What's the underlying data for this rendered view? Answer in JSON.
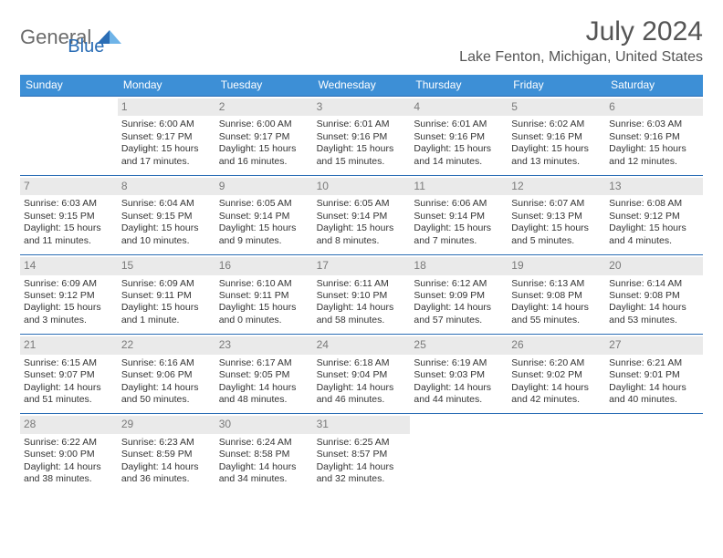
{
  "logo": {
    "text_a": "General",
    "text_b": "Blue",
    "color_gray": "#6b6b6b",
    "color_blue": "#2a6db5"
  },
  "title": {
    "month": "July 2024",
    "location": "Lake Fenton, Michigan, United States"
  },
  "colors": {
    "header_bg": "#3d8fd6",
    "header_text": "#ffffff",
    "rule": "#2a6db5",
    "date_bg": "#eaeaea",
    "date_text": "#7a7a7a"
  },
  "day_headers": [
    "Sunday",
    "Monday",
    "Tuesday",
    "Wednesday",
    "Thursday",
    "Friday",
    "Saturday"
  ],
  "weeks": [
    [
      {
        "date": "",
        "lines": []
      },
      {
        "date": "1",
        "lines": [
          "Sunrise: 6:00 AM",
          "Sunset: 9:17 PM",
          "Daylight: 15 hours",
          "and 17 minutes."
        ]
      },
      {
        "date": "2",
        "lines": [
          "Sunrise: 6:00 AM",
          "Sunset: 9:17 PM",
          "Daylight: 15 hours",
          "and 16 minutes."
        ]
      },
      {
        "date": "3",
        "lines": [
          "Sunrise: 6:01 AM",
          "Sunset: 9:16 PM",
          "Daylight: 15 hours",
          "and 15 minutes."
        ]
      },
      {
        "date": "4",
        "lines": [
          "Sunrise: 6:01 AM",
          "Sunset: 9:16 PM",
          "Daylight: 15 hours",
          "and 14 minutes."
        ]
      },
      {
        "date": "5",
        "lines": [
          "Sunrise: 6:02 AM",
          "Sunset: 9:16 PM",
          "Daylight: 15 hours",
          "and 13 minutes."
        ]
      },
      {
        "date": "6",
        "lines": [
          "Sunrise: 6:03 AM",
          "Sunset: 9:16 PM",
          "Daylight: 15 hours",
          "and 12 minutes."
        ]
      }
    ],
    [
      {
        "date": "7",
        "lines": [
          "Sunrise: 6:03 AM",
          "Sunset: 9:15 PM",
          "Daylight: 15 hours",
          "and 11 minutes."
        ]
      },
      {
        "date": "8",
        "lines": [
          "Sunrise: 6:04 AM",
          "Sunset: 9:15 PM",
          "Daylight: 15 hours",
          "and 10 minutes."
        ]
      },
      {
        "date": "9",
        "lines": [
          "Sunrise: 6:05 AM",
          "Sunset: 9:14 PM",
          "Daylight: 15 hours",
          "and 9 minutes."
        ]
      },
      {
        "date": "10",
        "lines": [
          "Sunrise: 6:05 AM",
          "Sunset: 9:14 PM",
          "Daylight: 15 hours",
          "and 8 minutes."
        ]
      },
      {
        "date": "11",
        "lines": [
          "Sunrise: 6:06 AM",
          "Sunset: 9:14 PM",
          "Daylight: 15 hours",
          "and 7 minutes."
        ]
      },
      {
        "date": "12",
        "lines": [
          "Sunrise: 6:07 AM",
          "Sunset: 9:13 PM",
          "Daylight: 15 hours",
          "and 5 minutes."
        ]
      },
      {
        "date": "13",
        "lines": [
          "Sunrise: 6:08 AM",
          "Sunset: 9:12 PM",
          "Daylight: 15 hours",
          "and 4 minutes."
        ]
      }
    ],
    [
      {
        "date": "14",
        "lines": [
          "Sunrise: 6:09 AM",
          "Sunset: 9:12 PM",
          "Daylight: 15 hours",
          "and 3 minutes."
        ]
      },
      {
        "date": "15",
        "lines": [
          "Sunrise: 6:09 AM",
          "Sunset: 9:11 PM",
          "Daylight: 15 hours",
          "and 1 minute."
        ]
      },
      {
        "date": "16",
        "lines": [
          "Sunrise: 6:10 AM",
          "Sunset: 9:11 PM",
          "Daylight: 15 hours",
          "and 0 minutes."
        ]
      },
      {
        "date": "17",
        "lines": [
          "Sunrise: 6:11 AM",
          "Sunset: 9:10 PM",
          "Daylight: 14 hours",
          "and 58 minutes."
        ]
      },
      {
        "date": "18",
        "lines": [
          "Sunrise: 6:12 AM",
          "Sunset: 9:09 PM",
          "Daylight: 14 hours",
          "and 57 minutes."
        ]
      },
      {
        "date": "19",
        "lines": [
          "Sunrise: 6:13 AM",
          "Sunset: 9:08 PM",
          "Daylight: 14 hours",
          "and 55 minutes."
        ]
      },
      {
        "date": "20",
        "lines": [
          "Sunrise: 6:14 AM",
          "Sunset: 9:08 PM",
          "Daylight: 14 hours",
          "and 53 minutes."
        ]
      }
    ],
    [
      {
        "date": "21",
        "lines": [
          "Sunrise: 6:15 AM",
          "Sunset: 9:07 PM",
          "Daylight: 14 hours",
          "and 51 minutes."
        ]
      },
      {
        "date": "22",
        "lines": [
          "Sunrise: 6:16 AM",
          "Sunset: 9:06 PM",
          "Daylight: 14 hours",
          "and 50 minutes."
        ]
      },
      {
        "date": "23",
        "lines": [
          "Sunrise: 6:17 AM",
          "Sunset: 9:05 PM",
          "Daylight: 14 hours",
          "and 48 minutes."
        ]
      },
      {
        "date": "24",
        "lines": [
          "Sunrise: 6:18 AM",
          "Sunset: 9:04 PM",
          "Daylight: 14 hours",
          "and 46 minutes."
        ]
      },
      {
        "date": "25",
        "lines": [
          "Sunrise: 6:19 AM",
          "Sunset: 9:03 PM",
          "Daylight: 14 hours",
          "and 44 minutes."
        ]
      },
      {
        "date": "26",
        "lines": [
          "Sunrise: 6:20 AM",
          "Sunset: 9:02 PM",
          "Daylight: 14 hours",
          "and 42 minutes."
        ]
      },
      {
        "date": "27",
        "lines": [
          "Sunrise: 6:21 AM",
          "Sunset: 9:01 PM",
          "Daylight: 14 hours",
          "and 40 minutes."
        ]
      }
    ],
    [
      {
        "date": "28",
        "lines": [
          "Sunrise: 6:22 AM",
          "Sunset: 9:00 PM",
          "Daylight: 14 hours",
          "and 38 minutes."
        ]
      },
      {
        "date": "29",
        "lines": [
          "Sunrise: 6:23 AM",
          "Sunset: 8:59 PM",
          "Daylight: 14 hours",
          "and 36 minutes."
        ]
      },
      {
        "date": "30",
        "lines": [
          "Sunrise: 6:24 AM",
          "Sunset: 8:58 PM",
          "Daylight: 14 hours",
          "and 34 minutes."
        ]
      },
      {
        "date": "31",
        "lines": [
          "Sunrise: 6:25 AM",
          "Sunset: 8:57 PM",
          "Daylight: 14 hours",
          "and 32 minutes."
        ]
      },
      {
        "date": "",
        "lines": []
      },
      {
        "date": "",
        "lines": []
      },
      {
        "date": "",
        "lines": []
      }
    ]
  ]
}
